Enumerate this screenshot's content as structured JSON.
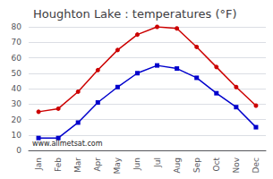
{
  "chart_data": {
    "type": "line",
    "title": "Houghton Lake : temperatures (°F)",
    "categories": [
      "Jan",
      "Feb",
      "Mar",
      "Apr",
      "May",
      "Jun",
      "Jul",
      "Aug",
      "Sep",
      "Oct",
      "Nov",
      "Dec"
    ],
    "series": [
      {
        "color": "#cc0000",
        "marker": "circle",
        "values": [
          25,
          27,
          38,
          52,
          65,
          75,
          80,
          79,
          67,
          54,
          41,
          29
        ]
      },
      {
        "color": "#0000cc",
        "marker": "square",
        "values": [
          8,
          8,
          18,
          31,
          41,
          50,
          55,
          53,
          47,
          37,
          28,
          15
        ]
      }
    ],
    "ylim": [
      0,
      80
    ],
    "yticks": [
      0,
      10,
      20,
      30,
      40,
      50,
      60,
      70,
      80
    ],
    "grid": true,
    "annotations": [
      "www.allmetsat.com"
    ]
  }
}
